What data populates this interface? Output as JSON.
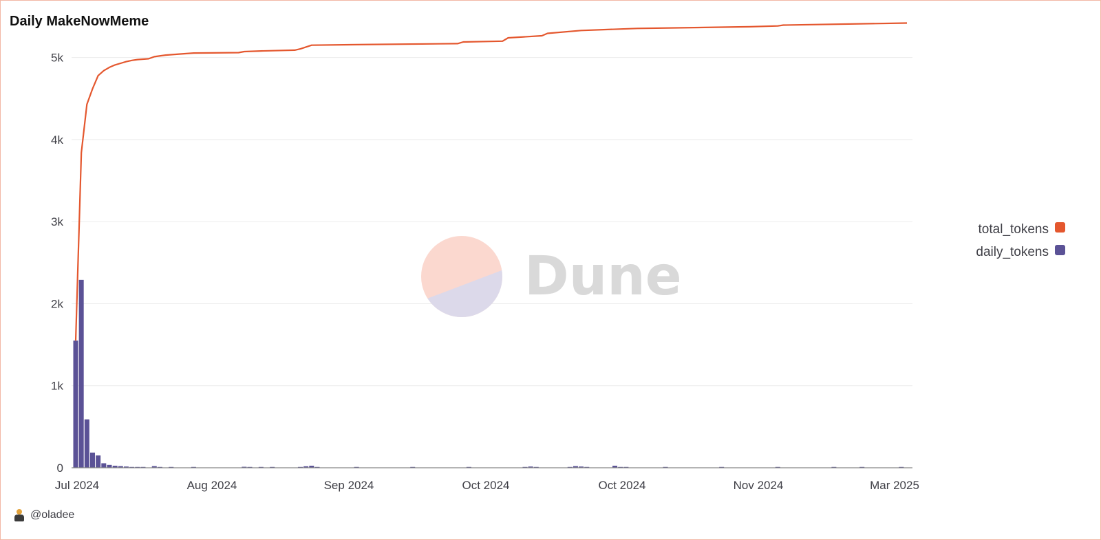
{
  "title": "Daily MakeNowMeme",
  "author": "@oladee",
  "watermark": "Dune",
  "colors": {
    "total_tokens": "#e4572e",
    "daily_tokens": "#5b5296",
    "grid": "#ececec",
    "watermark_top": "#fbd8cf",
    "watermark_bottom": "#dcd9ea"
  },
  "chart_data": {
    "type": "bar+line",
    "ylim": [
      0,
      5500
    ],
    "y_ticks": [
      {
        "value": 0,
        "label": "0"
      },
      {
        "value": 1000,
        "label": "1k"
      },
      {
        "value": 2000,
        "label": "2k"
      },
      {
        "value": 3000,
        "label": "3k"
      },
      {
        "value": 4000,
        "label": "4k"
      },
      {
        "value": 5000,
        "label": "5k"
      }
    ],
    "x_ticks": [
      "Jul 2024",
      "Aug 2024",
      "Sep 2024",
      "Oct 2024",
      "Oct 2024",
      "Nov 2024",
      "Mar 2025"
    ],
    "x_range_days": [
      0,
      148
    ],
    "legend": {
      "placement": "right",
      "entries": [
        "total_tokens",
        "daily_tokens"
      ]
    },
    "series": [
      {
        "name": "daily_tokens",
        "type": "bar",
        "points": [
          {
            "day": 0,
            "value": 1550
          },
          {
            "day": 1,
            "value": 2290
          },
          {
            "day": 2,
            "value": 590
          },
          {
            "day": 3,
            "value": 185
          },
          {
            "day": 4,
            "value": 150
          },
          {
            "day": 5,
            "value": 55
          },
          {
            "day": 6,
            "value": 35
          },
          {
            "day": 7,
            "value": 25
          },
          {
            "day": 8,
            "value": 20
          },
          {
            "day": 9,
            "value": 15
          },
          {
            "day": 10,
            "value": 10
          },
          {
            "day": 11,
            "value": 8
          },
          {
            "day": 12,
            "value": 6
          },
          {
            "day": 14,
            "value": 20
          },
          {
            "day": 15,
            "value": 5
          },
          {
            "day": 17,
            "value": 6
          },
          {
            "day": 21,
            "value": 8
          },
          {
            "day": 30,
            "value": 12
          },
          {
            "day": 31,
            "value": 6
          },
          {
            "day": 33,
            "value": 8
          },
          {
            "day": 35,
            "value": 5
          },
          {
            "day": 40,
            "value": 5
          },
          {
            "day": 41,
            "value": 18
          },
          {
            "day": 42,
            "value": 25
          },
          {
            "day": 43,
            "value": 6
          },
          {
            "day": 50,
            "value": 5
          },
          {
            "day": 60,
            "value": 5
          },
          {
            "day": 70,
            "value": 6
          },
          {
            "day": 80,
            "value": 5
          },
          {
            "day": 81,
            "value": 15
          },
          {
            "day": 82,
            "value": 6
          },
          {
            "day": 88,
            "value": 6
          },
          {
            "day": 89,
            "value": 20
          },
          {
            "day": 90,
            "value": 15
          },
          {
            "day": 91,
            "value": 5
          },
          {
            "day": 96,
            "value": 25
          },
          {
            "day": 97,
            "value": 8
          },
          {
            "day": 98,
            "value": 6
          },
          {
            "day": 105,
            "value": 5
          },
          {
            "day": 115,
            "value": 5
          },
          {
            "day": 125,
            "value": 5
          },
          {
            "day": 135,
            "value": 10
          },
          {
            "day": 140,
            "value": 5
          },
          {
            "day": 147,
            "value": 5
          }
        ]
      },
      {
        "name": "total_tokens",
        "type": "line",
        "points": [
          {
            "day": 0,
            "value": 1550
          },
          {
            "day": 1,
            "value": 3840
          },
          {
            "day": 2,
            "value": 4430
          },
          {
            "day": 3,
            "value": 4620
          },
          {
            "day": 4,
            "value": 4780
          },
          {
            "day": 5,
            "value": 4840
          },
          {
            "day": 6,
            "value": 4880
          },
          {
            "day": 7,
            "value": 4910
          },
          {
            "day": 8,
            "value": 4930
          },
          {
            "day": 9,
            "value": 4950
          },
          {
            "day": 10,
            "value": 4965
          },
          {
            "day": 11,
            "value": 4975
          },
          {
            "day": 13,
            "value": 4985
          },
          {
            "day": 14,
            "value": 5010
          },
          {
            "day": 16,
            "value": 5030
          },
          {
            "day": 18,
            "value": 5040
          },
          {
            "day": 21,
            "value": 5055
          },
          {
            "day": 29,
            "value": 5060
          },
          {
            "day": 30,
            "value": 5072
          },
          {
            "day": 33,
            "value": 5080
          },
          {
            "day": 39,
            "value": 5090
          },
          {
            "day": 40,
            "value": 5105
          },
          {
            "day": 42,
            "value": 5150
          },
          {
            "day": 53,
            "value": 5160
          },
          {
            "day": 68,
            "value": 5170
          },
          {
            "day": 69,
            "value": 5190
          },
          {
            "day": 76,
            "value": 5200
          },
          {
            "day": 77,
            "value": 5240
          },
          {
            "day": 83,
            "value": 5265
          },
          {
            "day": 84,
            "value": 5295
          },
          {
            "day": 90,
            "value": 5330
          },
          {
            "day": 100,
            "value": 5355
          },
          {
            "day": 120,
            "value": 5375
          },
          {
            "day": 125,
            "value": 5385
          },
          {
            "day": 126,
            "value": 5395
          },
          {
            "day": 148,
            "value": 5420
          }
        ]
      }
    ]
  }
}
